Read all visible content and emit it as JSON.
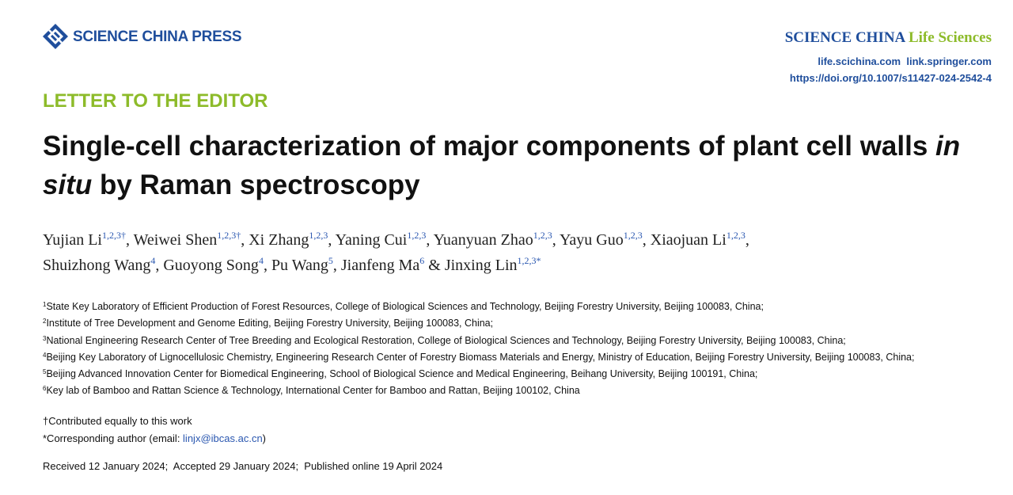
{
  "header": {
    "publisher": "SCIENCE CHINA PRESS",
    "journal": "SCIENCE CHINA",
    "journal_section": "Life Sciences",
    "links": [
      "life.scichina.com",
      "link.springer.com"
    ],
    "doi": "https://doi.org/10.1007/s11427-024-2542-4"
  },
  "article_type": "LETTER TO THE EDITOR",
  "title": {
    "before": "Single-cell characterization of major components of plant cell walls ",
    "italic": "in situ",
    "after": " by Raman spectroscopy"
  },
  "authors": [
    {
      "name": "Yujian Li",
      "sup": "1,2,3†",
      "sep": ", "
    },
    {
      "name": "Weiwei Shen",
      "sup": "1,2,3†",
      "sep": ", "
    },
    {
      "name": "Xi Zhang",
      "sup": "1,2,3",
      "sep": ", "
    },
    {
      "name": "Yaning Cui",
      "sup": "1,2,3",
      "sep": ", "
    },
    {
      "name": "Yuanyuan Zhao",
      "sup": "1,2,3",
      "sep": ", "
    },
    {
      "name": "Yayu Guo",
      "sup": "1,2,3",
      "sep": ", "
    },
    {
      "name": "Xiaojuan Li",
      "sup": "1,2,3",
      "sep": ", "
    },
    {
      "name": "Shuizhong Wang",
      "sup": "4",
      "sep": ", "
    },
    {
      "name": "Guoyong Song",
      "sup": "4",
      "sep": ", "
    },
    {
      "name": "Pu Wang",
      "sup": "5",
      "sep": ", "
    },
    {
      "name": "Jianfeng Ma",
      "sup": "6",
      "sep": " & "
    },
    {
      "name": "Jinxing Lin",
      "sup": "1,2,3*"
    }
  ],
  "affiliations": [
    {
      "num": "1",
      "text": "State Key Laboratory of Efficient Production of Forest Resources, College of Biological Sciences and Technology, Beijing Forestry University, Beijing 100083, China;"
    },
    {
      "num": "2",
      "text": "Institute of Tree Development and Genome Editing, Beijing Forestry University, Beijing 100083, China;"
    },
    {
      "num": "3",
      "text": "National Engineering Research Center of Tree Breeding and Ecological Restoration, College of Biological Sciences and Technology, Beijing Forestry University, Beijing 100083, China;"
    },
    {
      "num": "4",
      "text": "Beijing Key Laboratory of Lignocellulosic Chemistry, Engineering Research Center of Forestry Biomass Materials and Energy, Ministry of Education, Beijing Forestry University, Beijing 100083, China;"
    },
    {
      "num": "5",
      "text": "Beijing Advanced Innovation Center for Biomedical Engineering, School of Biological Science and Medical Engineering, Beihang University, Beijing 100191, China;"
    },
    {
      "num": "6",
      "text": "Key lab of Bamboo and Rattan Science & Technology, International Center for Bamboo and Rattan, Beijing 100102, China"
    }
  ],
  "notes": {
    "equal": "†Contributed equally to this work",
    "corresponding_before": "*Corresponding author (email: ",
    "email": "linjx@ibcas.ac.cn",
    "corresponding_after": ")"
  },
  "dates": "Received 12 January 2024;  Accepted 29 January 2024;  Published online 19 April 2024"
}
